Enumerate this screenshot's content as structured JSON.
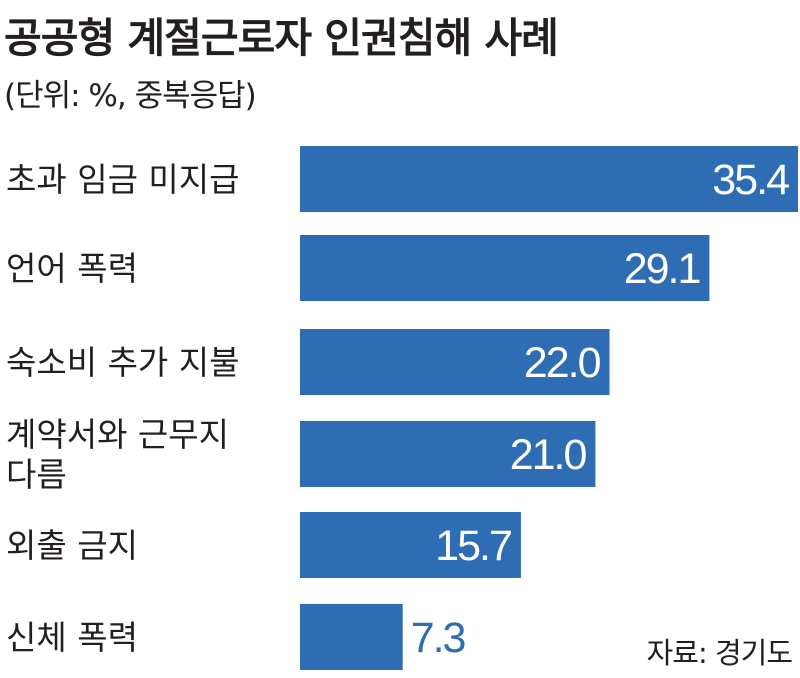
{
  "title": "공공형 계절근로자 인권침해 사례",
  "subtitle": "(단위: %, 중복응답)",
  "source": "자료: 경기도",
  "colors": {
    "bar": "#2e6db4",
    "value_inside": "#ffffff",
    "value_outside": "#2e6db4",
    "text": "#231f20"
  },
  "chart_data": {
    "type": "bar",
    "orientation": "horizontal",
    "title": "공공형 계절근로자 인권침해 사례",
    "subtitle": "(단위: %, 중복응답)",
    "categories": [
      [
        "초과 임금 미지급"
      ],
      [
        "언어 폭력"
      ],
      [
        "숙소비 추가 지불"
      ],
      [
        "계약서와 근무지",
        "다름"
      ],
      [
        "외출 금지"
      ],
      [
        "신체 폭력"
      ]
    ],
    "values": [
      35.4,
      29.1,
      22.0,
      21.0,
      15.7,
      7.3
    ],
    "value_labels": [
      "35.4",
      "29.1",
      "22.0",
      "21.0",
      "15.7",
      "7.3"
    ],
    "xlim": [
      0,
      35.4
    ],
    "grid": false,
    "legend": "none"
  }
}
